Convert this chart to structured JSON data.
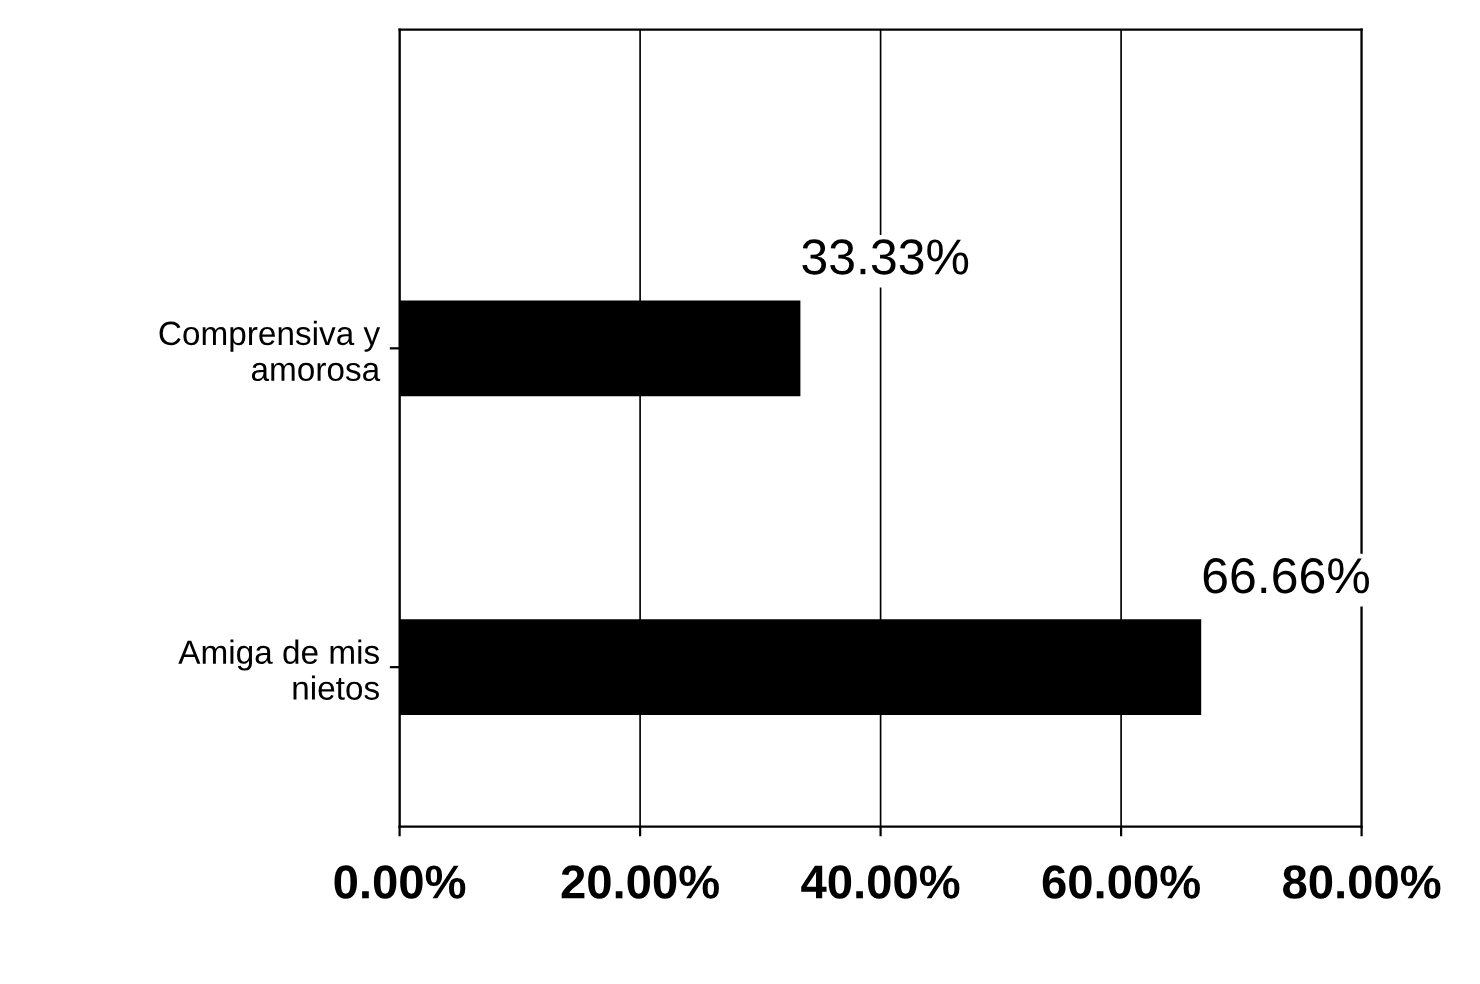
{
  "chart_data": {
    "type": "bar",
    "orientation": "horizontal",
    "categories": [
      "Comprensiva y\namorosa",
      "Amiga de mis\nnietos"
    ],
    "values": [
      33.33,
      66.66
    ],
    "value_labels": [
      "33.33%",
      "66.66%"
    ],
    "color": "#000000",
    "xlim": [
      0,
      80
    ],
    "xticks": [
      {
        "value": 0,
        "label": "0.00%"
      },
      {
        "value": 20,
        "label": "20.00%"
      },
      {
        "value": 40,
        "label": "40.00%"
      },
      {
        "value": 60,
        "label": "60.00%"
      },
      {
        "value": 80,
        "label": "80.00%"
      }
    ],
    "grid": "x",
    "legend": false
  }
}
